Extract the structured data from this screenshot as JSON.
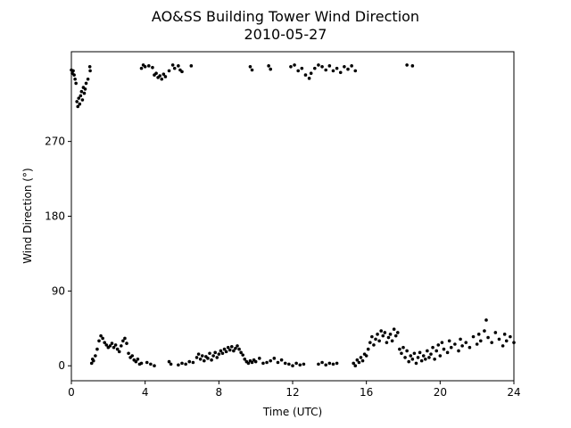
{
  "chart_data": {
    "type": "scatter",
    "title": "AO&SS Building Tower Wind Direction",
    "subtitle": "2010-05-27",
    "xlabel": "Time (UTC)",
    "ylabel": "Wind Direction (°)",
    "xlim": [
      0,
      24
    ],
    "xticks": [
      0,
      4,
      8,
      12,
      16,
      20,
      24
    ],
    "ylim": [
      -18,
      378
    ],
    "yticks": [
      0,
      90,
      180,
      270
    ],
    "color": "#000000",
    "x": [
      0.0,
      0.05,
      0.1,
      0.15,
      0.2,
      0.25,
      0.3,
      0.35,
      0.4,
      0.45,
      0.5,
      0.55,
      0.6,
      0.65,
      0.7,
      0.75,
      0.8,
      0.9,
      1.0,
      1.02,
      1.1,
      1.15,
      1.2,
      1.3,
      1.4,
      1.5,
      1.6,
      1.7,
      1.8,
      1.9,
      2.0,
      2.1,
      2.2,
      2.3,
      2.4,
      2.5,
      2.6,
      2.7,
      2.8,
      2.9,
      3.0,
      3.1,
      3.2,
      3.3,
      3.4,
      3.5,
      3.6,
      3.7,
      3.8,
      3.8,
      3.9,
      4.0,
      4.2,
      4.4,
      4.5,
      4.6,
      4.7,
      4.8,
      4.9,
      5.0,
      5.1,
      5.3,
      5.5,
      5.6,
      5.8,
      5.9,
      6.0,
      6.5,
      4.1,
      4.3,
      4.5,
      5.3,
      5.4,
      5.8,
      6.0,
      6.2,
      6.4,
      6.6,
      6.8,
      6.9,
      7.0,
      7.1,
      7.2,
      7.3,
      7.4,
      7.5,
      7.6,
      7.7,
      7.8,
      7.9,
      8.0,
      8.1,
      8.2,
      8.3,
      8.4,
      8.5,
      8.6,
      8.7,
      8.8,
      8.9,
      9.0,
      9.1,
      9.2,
      9.3,
      9.4,
      9.5,
      9.6,
      9.7,
      9.8,
      9.9,
      10.0,
      10.2,
      10.4,
      10.6,
      10.8,
      11.0,
      11.2,
      11.4,
      11.6,
      11.8,
      12.0,
      12.2,
      12.4,
      12.6,
      13.4,
      13.6,
      13.8,
      14.0,
      14.2,
      14.4,
      9.7,
      9.8,
      10.7,
      10.8,
      11.9,
      12.1,
      12.3,
      12.5,
      12.7,
      12.9,
      13.0,
      13.2,
      13.4,
      13.6,
      13.8,
      14.0,
      14.2,
      14.4,
      14.6,
      14.8,
      15.0,
      15.2,
      15.4,
      18.2,
      18.5,
      15.3,
      15.4,
      15.5,
      15.6,
      15.7,
      15.8,
      15.9,
      16.0,
      16.1,
      16.2,
      16.3,
      16.4,
      16.5,
      16.6,
      16.7,
      16.8,
      16.9,
      17.0,
      17.1,
      17.2,
      17.3,
      17.4,
      17.5,
      17.6,
      17.7,
      17.8,
      17.9,
      18.0,
      18.1,
      18.2,
      18.3,
      18.4,
      18.5,
      18.6,
      18.7,
      18.8,
      18.9,
      19.0,
      19.1,
      19.2,
      19.3,
      19.4,
      19.5,
      19.6,
      19.7,
      19.8,
      19.9,
      20.0,
      20.1,
      20.2,
      20.4,
      20.5,
      20.6,
      20.8,
      21.0,
      21.1,
      21.2,
      21.4,
      21.6,
      21.8,
      22.0,
      22.1,
      22.2,
      22.4,
      22.5,
      22.6,
      22.8,
      23.0,
      23.2,
      23.4,
      23.5,
      23.6,
      23.8,
      24.0
    ],
    "values": [
      356,
      352,
      355,
      350,
      345,
      340,
      318,
      312,
      322,
      315,
      325,
      330,
      320,
      335,
      328,
      333,
      340,
      345,
      360,
      355,
      3,
      8,
      6,
      12,
      20,
      30,
      36,
      33,
      28,
      25,
      22,
      24,
      27,
      22,
      25,
      20,
      17,
      24,
      30,
      33,
      27,
      15,
      10,
      12,
      7,
      5,
      8,
      2,
      3,
      358,
      362,
      360,
      361,
      359,
      350,
      352,
      347,
      349,
      345,
      351,
      348,
      355,
      362,
      358,
      361,
      356,
      354,
      361,
      4,
      2,
      0,
      5,
      2,
      1,
      3,
      2,
      5,
      4,
      10,
      14,
      8,
      12,
      6,
      11,
      9,
      15,
      7,
      12,
      16,
      10,
      14,
      18,
      15,
      20,
      17,
      22,
      19,
      23,
      18,
      21,
      24,
      20,
      16,
      13,
      8,
      5,
      3,
      6,
      4,
      7,
      5,
      9,
      3,
      4,
      6,
      9,
      4,
      7,
      3,
      2,
      0,
      3,
      1,
      2,
      2,
      4,
      1,
      3,
      2,
      3,
      360,
      356,
      361,
      357,
      360,
      362,
      355,
      358,
      350,
      346,
      352,
      358,
      362,
      360,
      356,
      361,
      355,
      358,
      353,
      360,
      357,
      361,
      355,
      362,
      361,
      3,
      0,
      7,
      4,
      10,
      6,
      14,
      12,
      20,
      28,
      35,
      25,
      32,
      38,
      30,
      42,
      36,
      40,
      28,
      34,
      38,
      30,
      44,
      36,
      40,
      20,
      15,
      22,
      10,
      18,
      5,
      12,
      8,
      15,
      3,
      10,
      16,
      6,
      12,
      8,
      18,
      10,
      14,
      22,
      8,
      18,
      25,
      12,
      28,
      20,
      16,
      30,
      22,
      26,
      18,
      32,
      24,
      28,
      22,
      35,
      26,
      38,
      30,
      42,
      55,
      34,
      28,
      40,
      32,
      24,
      38,
      30,
      35,
      28
    ]
  }
}
